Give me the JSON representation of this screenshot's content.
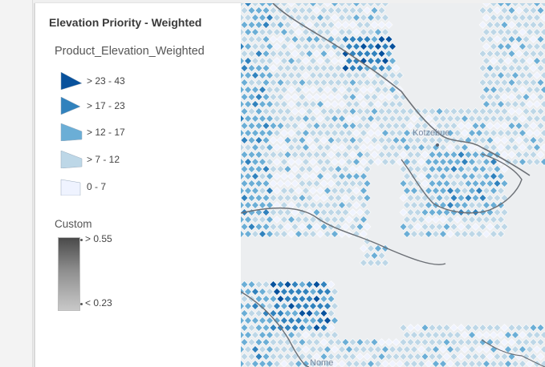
{
  "legend": {
    "title": "Elevation Priority - Weighted",
    "layer_name": "Product_Elevation_Weighted",
    "classes": [
      {
        "label": "> 23 - 43",
        "color": "#08519c"
      },
      {
        "label": "> 17 - 23",
        "color": "#3182bd"
      },
      {
        "label": "> 12 - 17",
        "color": "#6baed6"
      },
      {
        "label": "> 7 - 12",
        "color": "#bdd7e7"
      },
      {
        "label": "0 - 7",
        "color": "#eff3ff"
      }
    ],
    "custom": {
      "label": "Custom",
      "max_label": "> 0.55",
      "min_label": "< 0.23"
    }
  },
  "map": {
    "places": [
      {
        "name": "Kotzebue"
      },
      {
        "name": "Nome"
      }
    ]
  }
}
